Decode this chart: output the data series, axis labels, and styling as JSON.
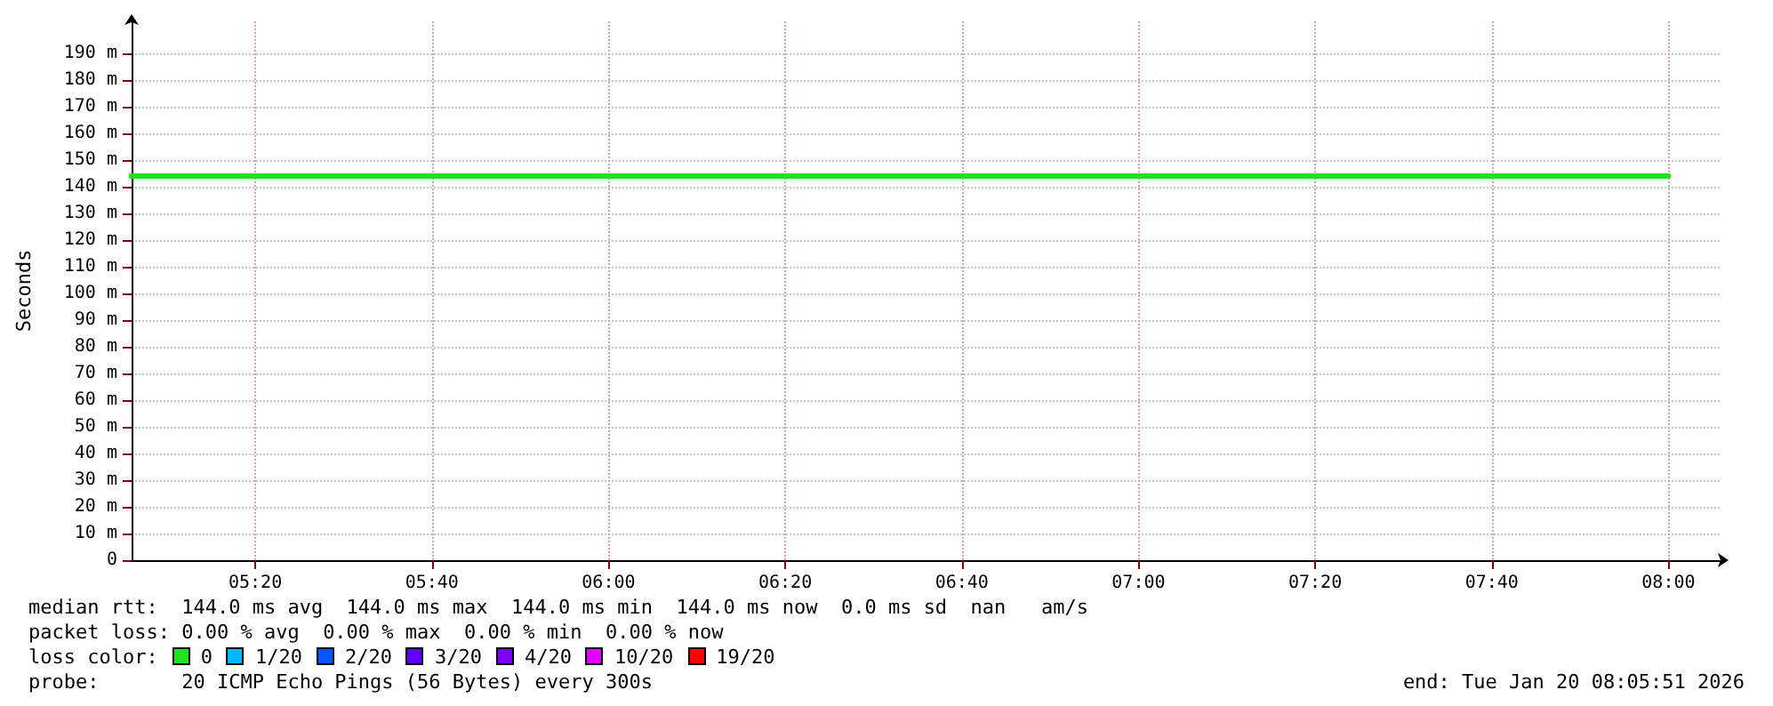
{
  "chart_data": {
    "type": "line",
    "ylabel": "Seconds",
    "x": [
      "2026-01-20T05:06",
      "2026-01-20T08:00"
    ],
    "series": [
      {
        "name": "0",
        "color": "#20e020",
        "values": [
          144,
          144
        ]
      },
      {
        "name": "1/20",
        "color": "#00b8ff",
        "values": [
          null,
          null
        ]
      },
      {
        "name": "2/20",
        "color": "#0059ff",
        "values": [
          null,
          null
        ]
      },
      {
        "name": "3/20",
        "color": "#5e00ff",
        "values": [
          null,
          null
        ]
      },
      {
        "name": "4/20",
        "color": "#7e00ff",
        "values": [
          null,
          null
        ]
      },
      {
        "name": "10/20",
        "color": "#dd00ff",
        "values": [
          null,
          null
        ]
      },
      {
        "name": "19/20",
        "color": "#ff0000",
        "values": [
          null,
          null
        ]
      }
    ],
    "xlim": [
      "2026-01-20T05:06",
      "2026-01-20T08:06"
    ],
    "xticks": [
      {
        "value": "2026-01-20T05:20",
        "label": "05:20"
      },
      {
        "value": "2026-01-20T05:40",
        "label": "05:40"
      },
      {
        "value": "2026-01-20T06:00",
        "label": "06:00"
      },
      {
        "value": "2026-01-20T06:20",
        "label": "06:20"
      },
      {
        "value": "2026-01-20T06:40",
        "label": "06:40"
      },
      {
        "value": "2026-01-20T07:00",
        "label": "07:00"
      },
      {
        "value": "2026-01-20T07:20",
        "label": "07:20"
      },
      {
        "value": "2026-01-20T07:40",
        "label": "07:40"
      },
      {
        "value": "2026-01-20T08:00",
        "label": "08:00"
      }
    ],
    "ylim": [
      0,
      202
    ],
    "yticks": [
      {
        "value": 0,
        "label": "0"
      },
      {
        "value": 10,
        "label": "10 m"
      },
      {
        "value": 20,
        "label": "20 m"
      },
      {
        "value": 30,
        "label": "30 m"
      },
      {
        "value": 40,
        "label": "40 m"
      },
      {
        "value": 50,
        "label": "50 m"
      },
      {
        "value": 60,
        "label": "60 m"
      },
      {
        "value": 70,
        "label": "70 m"
      },
      {
        "value": 80,
        "label": "80 m"
      },
      {
        "value": 90,
        "label": "90 m"
      },
      {
        "value": 100,
        "label": "100 m"
      },
      {
        "value": 110,
        "label": "110 m"
      },
      {
        "value": 120,
        "label": "120 m"
      },
      {
        "value": 130,
        "label": "130 m"
      },
      {
        "value": 140,
        "label": "140 m"
      },
      {
        "value": 150,
        "label": "150 m"
      },
      {
        "value": 160,
        "label": "160 m"
      },
      {
        "value": 170,
        "label": "170 m"
      },
      {
        "value": 180,
        "label": "180 m"
      },
      {
        "value": 190,
        "label": "190 m"
      }
    ],
    "grid": true,
    "legend": "bottom",
    "marker": "none",
    "line_style": "solid",
    "annotations": [
      "median rtt:  144.0 ms avg  144.0 ms max  144.0 ms min  144.0 ms now  0.0 ms sd  nan   am/s",
      "packet loss: 0.00 % avg  0.00 % max  0.00 % min  0.00 % now",
      "loss color:",
      "probe:       20 ICMP Echo Pings (56 Bytes) every 300s",
      "end: Tue Jan 20 08:05:51 2026"
    ]
  }
}
